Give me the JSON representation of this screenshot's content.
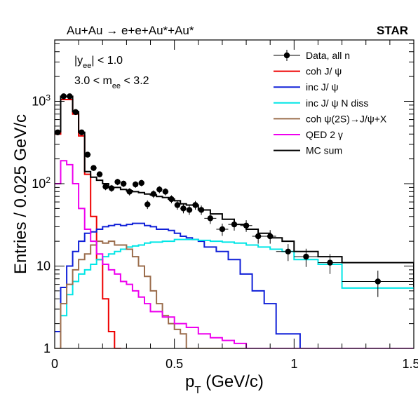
{
  "chart_data": {
    "type": "line",
    "title": "Au+Au → e+e+Au*+Au*",
    "experiment": "STAR",
    "cuts": [
      "|y_ee| < 1.0",
      "3.0 < m_ee < 3.2"
    ],
    "xlabel": "p_T (GeV/c)",
    "ylabel": "Entries / 0.025 GeV/c",
    "xlim": [
      0,
      1.5
    ],
    "ylim": [
      1,
      5000
    ],
    "yscale": "log",
    "x_ticks": [
      "0",
      "0.5",
      "1",
      "1.5"
    ],
    "y_ticks": [
      "1",
      "10",
      "10²",
      "10³"
    ],
    "legend_position": "top-right",
    "data_points": {
      "name": "Data, all n",
      "color": "#000000",
      "points": [
        {
          "x": 0.0125,
          "y": 420,
          "xerr": 0.0125
        },
        {
          "x": 0.0375,
          "y": 1150,
          "xerr": 0.0125
        },
        {
          "x": 0.0625,
          "y": 1150,
          "xerr": 0.0125
        },
        {
          "x": 0.0875,
          "y": 740,
          "xerr": 0.0125
        },
        {
          "x": 0.1125,
          "y": 420,
          "xerr": 0.0125
        },
        {
          "x": 0.1375,
          "y": 225,
          "xerr": 0.0125
        },
        {
          "x": 0.1625,
          "y": 155,
          "xerr": 0.0125
        },
        {
          "x": 0.1875,
          "y": 130,
          "xerr": 0.0125
        },
        {
          "x": 0.2125,
          "y": 92,
          "xerr": 0.0125
        },
        {
          "x": 0.2375,
          "y": 88,
          "xerr": 0.0125
        },
        {
          "x": 0.2625,
          "y": 105,
          "xerr": 0.0125
        },
        {
          "x": 0.2875,
          "y": 100,
          "xerr": 0.0125
        },
        {
          "x": 0.3125,
          "y": 80,
          "xerr": 0.0125
        },
        {
          "x": 0.3375,
          "y": 98,
          "xerr": 0.0125
        },
        {
          "x": 0.3625,
          "y": 102,
          "xerr": 0.0125
        },
        {
          "x": 0.3875,
          "y": 56,
          "xerr": 0.0125
        },
        {
          "x": 0.4125,
          "y": 75,
          "xerr": 0.0125
        },
        {
          "x": 0.4375,
          "y": 85,
          "xerr": 0.0125
        },
        {
          "x": 0.4625,
          "y": 80,
          "xerr": 0.0125
        },
        {
          "x": 0.4875,
          "y": 65,
          "xerr": 0.0125
        },
        {
          "x": 0.5125,
          "y": 55,
          "xerr": 0.0125
        },
        {
          "x": 0.5375,
          "y": 50,
          "xerr": 0.0125
        },
        {
          "x": 0.5625,
          "y": 48,
          "xerr": 0.0125
        },
        {
          "x": 0.5875,
          "y": 55,
          "xerr": 0.0125
        },
        {
          "x": 0.6125,
          "y": 48,
          "xerr": 0.0125
        },
        {
          "x": 0.65,
          "y": 38,
          "xerr": 0.025
        },
        {
          "x": 0.7,
          "y": 28,
          "xerr": 0.025
        },
        {
          "x": 0.75,
          "y": 32,
          "xerr": 0.025
        },
        {
          "x": 0.8,
          "y": 31,
          "xerr": 0.025
        },
        {
          "x": 0.85,
          "y": 23,
          "xerr": 0.025
        },
        {
          "x": 0.9,
          "y": 23,
          "xerr": 0.025
        },
        {
          "x": 0.975,
          "y": 15,
          "xerr": 0.05
        },
        {
          "x": 1.05,
          "y": 13,
          "xerr": 0.05
        },
        {
          "x": 1.15,
          "y": 11,
          "xerr": 0.05
        },
        {
          "x": 1.35,
          "y": 6.5,
          "xerr": 0.15
        }
      ]
    },
    "series": [
      {
        "name": "coh J/ ψ",
        "color": "#ee0000",
        "edges": [
          0,
          0.025,
          0.05,
          0.075,
          0.1,
          0.125,
          0.15,
          0.175,
          0.2,
          0.225,
          0.25,
          0.275,
          1.5
        ],
        "values": [
          400,
          1050,
          1050,
          700,
          380,
          130,
          40,
          12,
          4,
          1.6,
          1.0,
          0.5
        ]
      },
      {
        "name": "inc J/ ψ",
        "color": "#1020d8",
        "edges": [
          0,
          0.025,
          0.05,
          0.075,
          0.1,
          0.125,
          0.15,
          0.175,
          0.2,
          0.225,
          0.25,
          0.275,
          0.3,
          0.325,
          0.35,
          0.375,
          0.4,
          0.425,
          0.45,
          0.475,
          0.5,
          0.525,
          0.55,
          0.575,
          0.6,
          0.625,
          0.675,
          0.725,
          0.775,
          0.825,
          0.875,
          0.925,
          1.025,
          1.1,
          1.5
        ],
        "values": [
          1.6,
          5.5,
          10,
          15,
          20,
          25,
          26,
          28,
          30,
          31,
          32,
          31,
          32,
          33,
          33,
          31,
          30,
          28,
          28,
          27,
          25,
          23,
          22,
          21,
          20,
          17,
          15,
          12,
          8,
          5,
          3.5,
          1.5,
          1.0,
          0.8
        ]
      },
      {
        "name": "inc J/ ψ N diss",
        "color": "#00e6e6",
        "edges": [
          0,
          0.025,
          0.05,
          0.075,
          0.1,
          0.125,
          0.15,
          0.175,
          0.2,
          0.225,
          0.25,
          0.275,
          0.3,
          0.325,
          0.35,
          0.375,
          0.4,
          0.45,
          0.5,
          0.55,
          0.6,
          0.65,
          0.7,
          0.75,
          0.8,
          0.85,
          0.9,
          0.95,
          1.0,
          1.1,
          1.2,
          1.5
        ],
        "values": [
          1.0,
          2.5,
          4.5,
          6.5,
          8,
          9,
          10.5,
          12,
          13,
          14,
          15,
          16,
          17,
          17.5,
          18,
          19,
          19.5,
          20,
          21,
          21,
          20.5,
          20,
          19.5,
          19,
          18,
          17,
          16,
          15,
          12,
          10.5,
          5.4
        ]
      },
      {
        "name": "coh  ψ(2S)→J/ψ+X",
        "color": "#9b6d4c",
        "edges": [
          0,
          0.025,
          0.05,
          0.075,
          0.1,
          0.125,
          0.15,
          0.175,
          0.2,
          0.225,
          0.25,
          0.275,
          0.3,
          0.325,
          0.35,
          0.375,
          0.4,
          0.425,
          0.45,
          0.475,
          0.5,
          0.525,
          0.55,
          1.5
        ],
        "values": [
          1.0,
          3.5,
          6,
          9,
          12,
          14,
          18,
          20,
          19,
          20,
          18,
          18,
          16,
          13,
          10,
          7.5,
          5,
          3.5,
          2.5,
          2.0,
          1.7,
          1.5,
          1.0
        ]
      },
      {
        "name": "QED 2 γ",
        "color": "#ee00ee",
        "edges": [
          0,
          0.025,
          0.05,
          0.075,
          0.1,
          0.125,
          0.15,
          0.175,
          0.2,
          0.225,
          0.25,
          0.275,
          0.3,
          0.325,
          0.35,
          0.375,
          0.4,
          0.45,
          0.5,
          0.55,
          0.6,
          0.65,
          0.7,
          0.75,
          0.8,
          1.5
        ],
        "values": [
          100,
          190,
          170,
          100,
          50,
          28,
          20,
          14,
          10.5,
          9,
          8,
          6.5,
          6,
          5,
          4.2,
          3.5,
          2.8,
          2.4,
          2.0,
          1.8,
          1.5,
          1.35,
          1.25,
          1.15,
          1.0
        ]
      },
      {
        "name": "MC sum",
        "color": "#000000",
        "edges": [
          0,
          0.025,
          0.05,
          0.075,
          0.1,
          0.125,
          0.15,
          0.175,
          0.2,
          0.225,
          0.25,
          0.275,
          0.3,
          0.325,
          0.35,
          0.375,
          0.4,
          0.425,
          0.45,
          0.475,
          0.5,
          0.525,
          0.55,
          0.6,
          0.65,
          0.7,
          0.75,
          0.8,
          0.85,
          0.9,
          0.95,
          1.0,
          1.1,
          1.2,
          1.5
        ],
        "values": [
          430,
          1150,
          1150,
          750,
          420,
          140,
          120,
          110,
          100,
          90,
          90,
          85,
          82,
          80,
          78,
          75,
          73,
          70,
          68,
          65,
          62,
          57,
          55,
          48,
          43,
          37,
          32,
          28,
          25,
          22,
          20,
          15,
          13,
          11,
          5.6
        ]
      }
    ]
  }
}
